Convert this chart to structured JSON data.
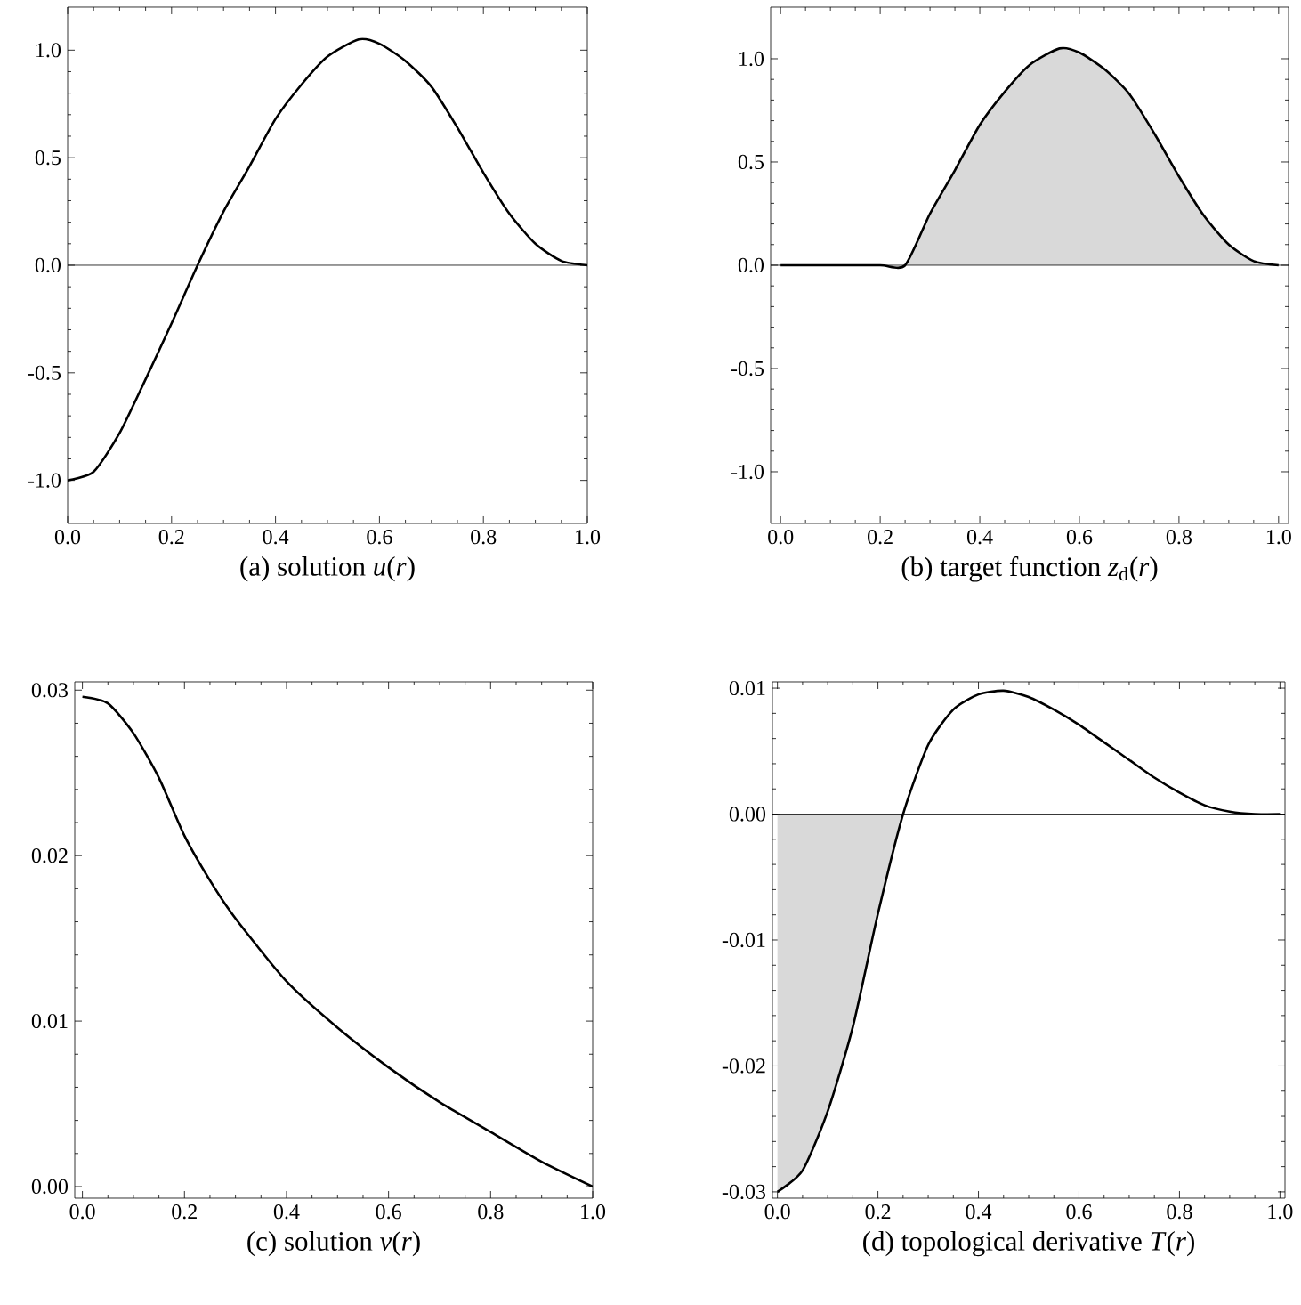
{
  "chart_data": [
    {
      "type": "line",
      "title": "(a) solution *u*(*r*)",
      "xlim": [
        0,
        1
      ],
      "ylim": [
        -1.2,
        1.2
      ],
      "xticks": [
        {
          "value": 0,
          "label": "0.0"
        },
        {
          "value": 0.2,
          "label": "0.2"
        },
        {
          "value": 0.4,
          "label": "0.4"
        },
        {
          "value": 0.6,
          "label": "0.6"
        },
        {
          "value": 0.8,
          "label": "0.8"
        },
        {
          "value": 1,
          "label": "1.0"
        }
      ],
      "yticks": [
        {
          "value": -1,
          "label": "-1.0"
        },
        {
          "value": -0.5,
          "label": "-0.5"
        },
        {
          "value": 0,
          "label": "0.0"
        },
        {
          "value": 0.5,
          "label": "0.5"
        },
        {
          "value": 1,
          "label": "1.0"
        }
      ],
      "ref_lines": [
        {
          "axis": "y",
          "value": 0,
          "color": "#000000"
        }
      ],
      "series": [
        {
          "color": "#000000",
          "x": [
            0,
            0.05,
            0.1,
            0.15,
            0.2,
            0.25,
            0.3,
            0.35,
            0.4,
            0.45,
            0.5,
            0.56,
            0.6,
            0.65,
            0.7,
            0.75,
            0.8,
            0.85,
            0.9,
            0.95,
            1.0
          ],
          "values": [
            -1.0,
            -0.96,
            -0.78,
            -0.53,
            -0.27,
            0.0,
            0.25,
            0.46,
            0.68,
            0.84,
            0.97,
            1.05,
            1.03,
            0.95,
            0.83,
            0.64,
            0.43,
            0.24,
            0.1,
            0.02,
            0.0
          ]
        }
      ]
    },
    {
      "type": "line",
      "title": "(b) target function *z*$_{d}$(*r*)",
      "xlim": [
        -0.02,
        1.02
      ],
      "ylim": [
        -1.25,
        1.25
      ],
      "xticks": [
        {
          "value": 0,
          "label": "0.0"
        },
        {
          "value": 0.2,
          "label": "0.2"
        },
        {
          "value": 0.4,
          "label": "0.4"
        },
        {
          "value": 0.6,
          "label": "0.6"
        },
        {
          "value": 0.8,
          "label": "0.8"
        },
        {
          "value": 1,
          "label": "1.0"
        }
      ],
      "yticks": [
        {
          "value": -1,
          "label": "-1.0"
        },
        {
          "value": -0.5,
          "label": "-0.5"
        },
        {
          "value": 0,
          "label": "0.0"
        },
        {
          "value": 0.5,
          "label": "0.5"
        },
        {
          "value": 1,
          "label": "1.0"
        }
      ],
      "ref_lines": [
        {
          "axis": "y",
          "value": 0,
          "color": "#000000"
        }
      ],
      "series": [
        {
          "type": "area",
          "color": "#d9d9d9",
          "x": [
            0.25,
            0.3,
            0.35,
            0.4,
            0.45,
            0.5,
            0.56,
            0.6,
            0.65,
            0.7,
            0.75,
            0.8,
            0.85,
            0.9,
            0.95,
            1.0
          ],
          "values": [
            0.0,
            0.25,
            0.46,
            0.68,
            0.84,
            0.97,
            1.05,
            1.03,
            0.95,
            0.83,
            0.64,
            0.43,
            0.24,
            0.1,
            0.02,
            0.0
          ]
        },
        {
          "color": "#000000",
          "x": [
            0,
            0.1,
            0.2,
            0.25,
            0.3,
            0.35,
            0.4,
            0.45,
            0.5,
            0.56,
            0.6,
            0.65,
            0.7,
            0.75,
            0.8,
            0.85,
            0.9,
            0.95,
            1.0
          ],
          "values": [
            0.0,
            0.0,
            0.0,
            0.0,
            0.25,
            0.46,
            0.68,
            0.84,
            0.97,
            1.05,
            1.03,
            0.95,
            0.83,
            0.64,
            0.43,
            0.24,
            0.1,
            0.02,
            0.0
          ]
        }
      ]
    },
    {
      "type": "line",
      "title": "(c) solution *v*(*r*)",
      "xlim": [
        -0.015,
        1.0
      ],
      "ylim": [
        -0.0007,
        0.0305
      ],
      "xticks": [
        {
          "value": 0,
          "label": "0.0"
        },
        {
          "value": 0.2,
          "label": "0.2"
        },
        {
          "value": 0.4,
          "label": "0.4"
        },
        {
          "value": 0.6,
          "label": "0.6"
        },
        {
          "value": 0.8,
          "label": "0.8"
        },
        {
          "value": 1,
          "label": "1.0"
        }
      ],
      "yticks": [
        {
          "value": 0,
          "label": "0.00"
        },
        {
          "value": 0.01,
          "label": "0.01"
        },
        {
          "value": 0.02,
          "label": "0.02"
        },
        {
          "value": 0.03,
          "label": "0.03"
        }
      ],
      "series": [
        {
          "color": "#000000",
          "x": [
            0,
            0.05,
            0.1,
            0.15,
            0.2,
            0.25,
            0.3,
            0.4,
            0.5,
            0.6,
            0.7,
            0.8,
            0.9,
            1.0
          ],
          "values": [
            0.0296,
            0.0292,
            0.0274,
            0.0247,
            0.0212,
            0.0185,
            0.0162,
            0.0124,
            0.0096,
            0.0072,
            0.0051,
            0.0033,
            0.0015,
            0.0
          ]
        }
      ]
    },
    {
      "type": "line",
      "title": "(d) topological derivative *T*(*r*)",
      "xlim": [
        -0.01,
        1.01
      ],
      "ylim": [
        -0.0305,
        0.0105
      ],
      "xticks": [
        {
          "value": 0,
          "label": "0.0"
        },
        {
          "value": 0.2,
          "label": "0.2"
        },
        {
          "value": 0.4,
          "label": "0.4"
        },
        {
          "value": 0.6,
          "label": "0.6"
        },
        {
          "value": 0.8,
          "label": "0.8"
        },
        {
          "value": 1,
          "label": "1.0"
        }
      ],
      "yticks": [
        {
          "value": -0.03,
          "label": "-0.03"
        },
        {
          "value": -0.02,
          "label": "-0.02"
        },
        {
          "value": -0.01,
          "label": "-0.01"
        },
        {
          "value": 0,
          "label": "0.00"
        },
        {
          "value": 0.01,
          "label": "0.01"
        }
      ],
      "ref_lines": [
        {
          "axis": "y",
          "value": 0,
          "color": "#000000"
        }
      ],
      "series": [
        {
          "type": "area",
          "color": "#d9d9d9",
          "x": [
            0,
            0.05,
            0.1,
            0.15,
            0.2,
            0.25
          ],
          "values": [
            -0.03,
            -0.0283,
            -0.0236,
            -0.0169,
            -0.0079,
            0.0
          ]
        },
        {
          "color": "#000000",
          "x": [
            0,
            0.05,
            0.1,
            0.15,
            0.2,
            0.25,
            0.3,
            0.35,
            0.4,
            0.45,
            0.5,
            0.55,
            0.6,
            0.65,
            0.7,
            0.75,
            0.8,
            0.85,
            0.9,
            0.95,
            1.0
          ],
          "values": [
            -0.03,
            -0.0283,
            -0.0236,
            -0.0169,
            -0.0079,
            0.0,
            0.0055,
            0.0083,
            0.0095,
            0.0098,
            0.0093,
            0.0083,
            0.0071,
            0.0057,
            0.0043,
            0.0029,
            0.0017,
            0.0007,
            0.0002,
            0.0,
            0.0
          ]
        }
      ]
    }
  ]
}
